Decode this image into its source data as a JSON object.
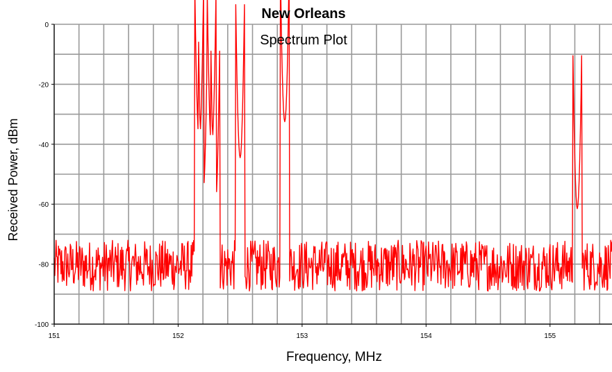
{
  "chart_data": {
    "type": "line",
    "title": "New Orleans",
    "subtitle": "Spectrum Plot",
    "xlabel": "Frequency, MHz",
    "ylabel": "Received Power, dBm",
    "xlim": [
      151,
      155.5
    ],
    "ylim": [
      -100,
      0
    ],
    "x_ticks": [
      151,
      152,
      153,
      154,
      155
    ],
    "y_ticks": [
      0,
      -20,
      -40,
      -60,
      -80,
      -100
    ],
    "grid": true,
    "line_color": "#ff0000",
    "series": [
      {
        "noise_floor_dbm": -80,
        "noise_range_dbm": [
          -89,
          -72
        ],
        "start_mhz": 151.0,
        "step_mhz": 0.005,
        "end_mhz": 155.5,
        "peaks": [
          {
            "freq_mhz": 152.17,
            "power_dbm": -39
          },
          {
            "freq_mhz": 152.2,
            "power_dbm": -57
          },
          {
            "freq_mhz": 152.27,
            "power_dbm": -41
          },
          {
            "freq_mhz": 152.3,
            "power_dbm": -60
          },
          {
            "freq_mhz": 152.5,
            "power_dbm": -44.5
          },
          {
            "freq_mhz": 152.86,
            "power_dbm": -32.5
          },
          {
            "freq_mhz": 155.22,
            "power_dbm": -61.5
          }
        ]
      }
    ]
  }
}
